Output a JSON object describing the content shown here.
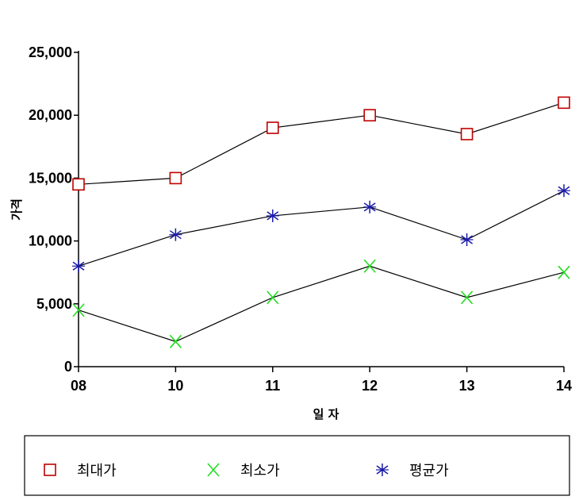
{
  "chart_data": {
    "type": "line",
    "categories": [
      "08",
      "10",
      "11",
      "12",
      "13",
      "14"
    ],
    "xlabel": "일 자",
    "ylabel": "가격",
    "ylim": [
      0,
      25000
    ],
    "yticks": [
      "0",
      "5,000",
      "10,000",
      "15,000",
      "20,000",
      "25,000"
    ],
    "ytick_values": [
      0,
      5000,
      10000,
      15000,
      20000,
      25000
    ],
    "grid": false,
    "legend_position": "bottom",
    "series": [
      {
        "name": "최대가",
        "marker": "square-marker",
        "color": "#c00000",
        "values": [
          14500,
          15000,
          19000,
          20000,
          18500,
          21000
        ]
      },
      {
        "name": "최소가",
        "marker": "x-marker",
        "color": "#22dd22",
        "values": [
          4500,
          2000,
          5500,
          8000,
          5500,
          7500
        ]
      },
      {
        "name": "평균가",
        "marker": "asterisk-marker",
        "color": "#1a1aa8",
        "values": [
          8000,
          10500,
          12000,
          12700,
          10100,
          14000
        ]
      }
    ]
  }
}
